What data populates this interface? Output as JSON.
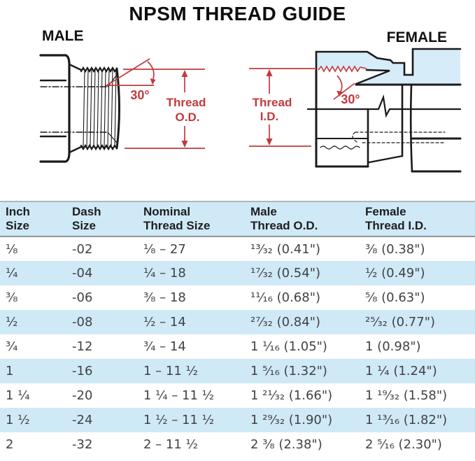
{
  "title": "NPSM THREAD GUIDE",
  "diagrams": {
    "male": {
      "label": "MALE",
      "angle_label": "30°",
      "dimension_label_line1": "Thread",
      "dimension_label_line2": "O.D."
    },
    "female": {
      "label": "FEMALE",
      "angle_label": "30°",
      "dimension_label_line1": "Thread",
      "dimension_label_line2": "I.D."
    },
    "annotation_color": "#c13a3c",
    "section_fill_color": "#d7ecf9",
    "line_color": "#1a1a1a"
  },
  "table": {
    "stripe_color": "#cfe9f7",
    "headers": [
      "Inch\nSize",
      "Dash\nSize",
      "Nominal\nThread Size",
      "Male\nThread O.D.",
      "Female\nThread I.D."
    ],
    "rows": [
      [
        "¹⁄₈",
        "-02",
        "¹⁄₈ – 27",
        "¹³⁄₃₂ (0.41\")",
        "³⁄₈ (0.38\")"
      ],
      [
        "¹⁄₄",
        "-04",
        "¹⁄₄ – 18",
        "¹⁷⁄₃₂ (0.54\")",
        "¹⁄₂ (0.49\")"
      ],
      [
        "³⁄₈",
        "-06",
        "³⁄₈ – 18",
        "¹¹⁄₁₆ (0.68\")",
        "⁵⁄₈ (0.63\")"
      ],
      [
        "¹⁄₂",
        "-08",
        "¹⁄₂ – 14",
        "²⁷⁄₃₂ (0.84\")",
        "²⁵⁄₃₂ (0.77\")"
      ],
      [
        "³⁄₄",
        "-12",
        "³⁄₄ – 14",
        "1 ¹⁄₁₆ (1.05\")",
        "1 (0.98\")"
      ],
      [
        "1",
        "-16",
        "1 – 11 ¹⁄₂",
        "1 ⁵⁄₁₆ (1.32\")",
        "1 ¹⁄₄ (1.24\")"
      ],
      [
        "1 ¹⁄₄",
        "-20",
        "1 ¹⁄₄ – 11 ¹⁄₂",
        "1 ²¹⁄₃₂ (1.66\")",
        "1 ¹⁹⁄₃₂ (1.58\")"
      ],
      [
        "1 ¹⁄₂",
        "-24",
        "1 ¹⁄₂ – 11 ¹⁄₂",
        "1 ²⁹⁄₃₂ (1.90\")",
        "1 ¹³⁄₁₆ (1.82\")"
      ],
      [
        "2",
        "-32",
        "2 – 11 ¹⁄₂",
        "2 ³⁄₈ (2.38\")",
        "2 ⁵⁄₁₆ (2.30\")"
      ]
    ]
  }
}
